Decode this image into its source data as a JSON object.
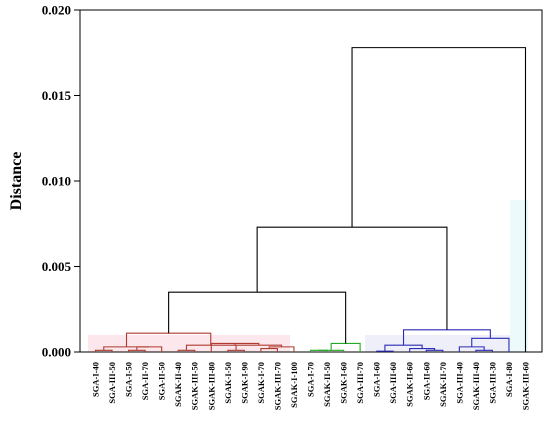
{
  "chart_data": {
    "type": "dendrogram",
    "ylabel": "Distance",
    "ylim": [
      0,
      0.02
    ],
    "yticks": [
      "0.000",
      "0.005",
      "0.010",
      "0.015",
      "0.020"
    ],
    "grid": false,
    "leaves": [
      "SGA-I-40",
      "SGA-III-50",
      "SGA-I-50",
      "SGA-II-70",
      "SGA-II-50",
      "SGAK-II-40",
      "SGAK-III-50",
      "SGAK-III-80",
      "SGAK-I-50",
      "SGAK-I-90",
      "SGAK-I-70",
      "SGAK-III-70",
      "SGAK-I-100",
      "SGA-I-70",
      "SGAK-II-50",
      "SGAK-I-60",
      "SGA-III-70",
      "SGA-I-60",
      "SGA-III-60",
      "SGAK-II-60",
      "SGA-II-60",
      "SGAK-II-70",
      "SGA-III-40",
      "SGAK-III-40",
      "SGA-III-30",
      "SGA-I-80",
      "SGAK-III-60"
    ],
    "leaf_colors": [
      "#b03a2e",
      "#b03a2e",
      "#b03a2e",
      "#b03a2e",
      "#b03a2e",
      "#b03a2e",
      "#b03a2e",
      "#b03a2e",
      "#b03a2e",
      "#b03a2e",
      "#b03a2e",
      "#b03a2e",
      "#b03a2e",
      "#22aa22",
      "#22aa22",
      "#22aa22",
      "#22aa22",
      "#2b2bb5",
      "#2b2bb5",
      "#2b2bb5",
      "#2b2bb5",
      "#2b2bb5",
      "#2b2bb5",
      "#2b2bb5",
      "#2b2bb5",
      "#2b2bb5",
      "#33cccc"
    ],
    "merges": [
      {
        "a": 0,
        "b": 1,
        "height": 0.0001,
        "color": "#b03a2e"
      },
      {
        "a": 2,
        "b": 3,
        "height": 0.0001,
        "color": "#b03a2e"
      },
      {
        "a": 28,
        "b": 4,
        "height": 0.0003,
        "color": "#b03a2e"
      },
      {
        "a": 27,
        "b": 29,
        "height": 0.0003,
        "color": "#b03a2e"
      },
      {
        "a": 5,
        "b": 6,
        "height": 0.0001,
        "color": "#b03a2e"
      },
      {
        "a": 8,
        "b": 9,
        "height": 0.0001,
        "color": "#b03a2e"
      },
      {
        "a": 10,
        "b": 11,
        "height": 0.0002,
        "color": "#b03a2e"
      },
      {
        "a": 33,
        "b": 12,
        "height": 0.0003,
        "color": "#b03a2e"
      },
      {
        "a": 32,
        "b": 34,
        "height": 0.0004,
        "color": "#b03a2e"
      },
      {
        "a": 7,
        "b": 35,
        "height": 0.0005,
        "color": "#b03a2e"
      },
      {
        "a": 31,
        "b": 36,
        "height": 0.0004,
        "color": "#b03a2e"
      },
      {
        "a": 30,
        "b": 37,
        "height": 0.0011,
        "color": "#b03a2e"
      },
      {
        "a": 13,
        "b": 14,
        "height": 0.0001,
        "color": "#22aa22"
      },
      {
        "a": 39,
        "b": 15,
        "height": 0.0001,
        "color": "#22aa22"
      },
      {
        "a": 40,
        "b": 16,
        "height": 0.0005,
        "color": "#22aa22"
      },
      {
        "a": 38,
        "b": 41,
        "height": 0.0035,
        "color": "#000000"
      },
      {
        "a": 17,
        "b": 18,
        "height": 5e-05,
        "color": "#2b2bb5"
      },
      {
        "a": 20,
        "b": 21,
        "height": 0.0001,
        "color": "#2b2bb5"
      },
      {
        "a": 19,
        "b": 44,
        "height": 0.0002,
        "color": "#2b2bb5"
      },
      {
        "a": 43,
        "b": 45,
        "height": 0.0004,
        "color": "#2b2bb5"
      },
      {
        "a": 23,
        "b": 24,
        "height": 0.0001,
        "color": "#2b2bb5"
      },
      {
        "a": 22,
        "b": 47,
        "height": 0.0003,
        "color": "#2b2bb5"
      },
      {
        "a": 48,
        "b": 25,
        "height": 0.0008,
        "color": "#2b2bb5"
      },
      {
        "a": 46,
        "b": 49,
        "height": 0.0013,
        "color": "#2b2bb5"
      },
      {
        "a": 42,
        "b": 50,
        "height": 0.0073,
        "color": "#000000"
      },
      {
        "a": 51,
        "b": 26,
        "height": 0.0178,
        "color": "#000000"
      }
    ]
  }
}
